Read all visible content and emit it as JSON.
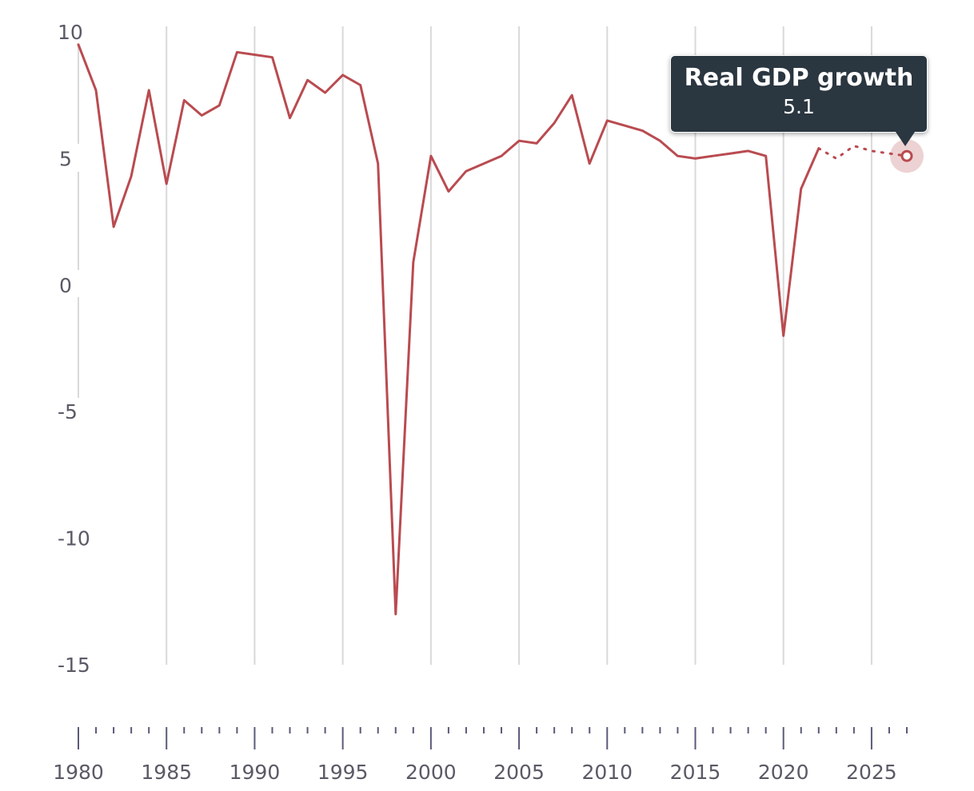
{
  "chart_data": {
    "type": "line",
    "title": "",
    "xlabel": "",
    "ylabel": "",
    "xlim": [
      1980,
      2027
    ],
    "ylim": [
      -15,
      10
    ],
    "y_ticks": [
      "10",
      "5",
      "0",
      "-5",
      "-10",
      "-15"
    ],
    "x_ticks": [
      "1980",
      "1985",
      "1990",
      "1995",
      "2000",
      "2005",
      "2010",
      "2015",
      "2020",
      "2025"
    ],
    "grid": "vertical",
    "series": [
      {
        "name": "Real GDP growth",
        "color": "#b94b50",
        "style": "solid",
        "points": [
          [
            1980,
            9.5
          ],
          [
            1981,
            7.7
          ],
          [
            1982,
            2.3
          ],
          [
            1983,
            4.3
          ],
          [
            1984,
            7.7
          ],
          [
            1985,
            4.0
          ],
          [
            1986,
            7.3
          ],
          [
            1987,
            6.7
          ],
          [
            1988,
            7.1
          ],
          [
            1989,
            9.2
          ],
          [
            1990,
            9.1
          ],
          [
            1991,
            9.0
          ],
          [
            1992,
            6.6
          ],
          [
            1993,
            8.1
          ],
          [
            1994,
            7.6
          ],
          [
            1995,
            8.3
          ],
          [
            1996,
            7.9
          ],
          [
            1997,
            4.8
          ],
          [
            1998,
            -13.0
          ],
          [
            1999,
            0.9
          ],
          [
            2000,
            5.1
          ],
          [
            2001,
            3.7
          ],
          [
            2002,
            4.5
          ],
          [
            2003,
            4.8
          ],
          [
            2004,
            5.1
          ],
          [
            2005,
            5.7
          ],
          [
            2006,
            5.6
          ],
          [
            2007,
            6.4
          ],
          [
            2008,
            7.5
          ],
          [
            2009,
            4.8
          ],
          [
            2010,
            6.5
          ],
          [
            2011,
            6.3
          ],
          [
            2012,
            6.1
          ],
          [
            2013,
            5.7
          ],
          [
            2014,
            5.1
          ],
          [
            2015,
            5.0
          ],
          [
            2016,
            5.1
          ],
          [
            2017,
            5.2
          ],
          [
            2018,
            5.3
          ],
          [
            2019,
            5.1
          ],
          [
            2020,
            -2.0
          ],
          [
            2021,
            3.8
          ],
          [
            2022,
            5.4
          ]
        ]
      },
      {
        "name": "Real GDP growth",
        "color": "#b94b50",
        "style": "dotted",
        "points": [
          [
            2022,
            5.4
          ],
          [
            2023,
            5.0
          ],
          [
            2024,
            5.5
          ],
          [
            2025,
            5.3
          ],
          [
            2026,
            5.2
          ],
          [
            2027,
            5.1
          ]
        ]
      }
    ],
    "tooltip": {
      "title": "Real GDP growth",
      "value": "5.1",
      "x": 2027,
      "y": 5.1
    }
  }
}
